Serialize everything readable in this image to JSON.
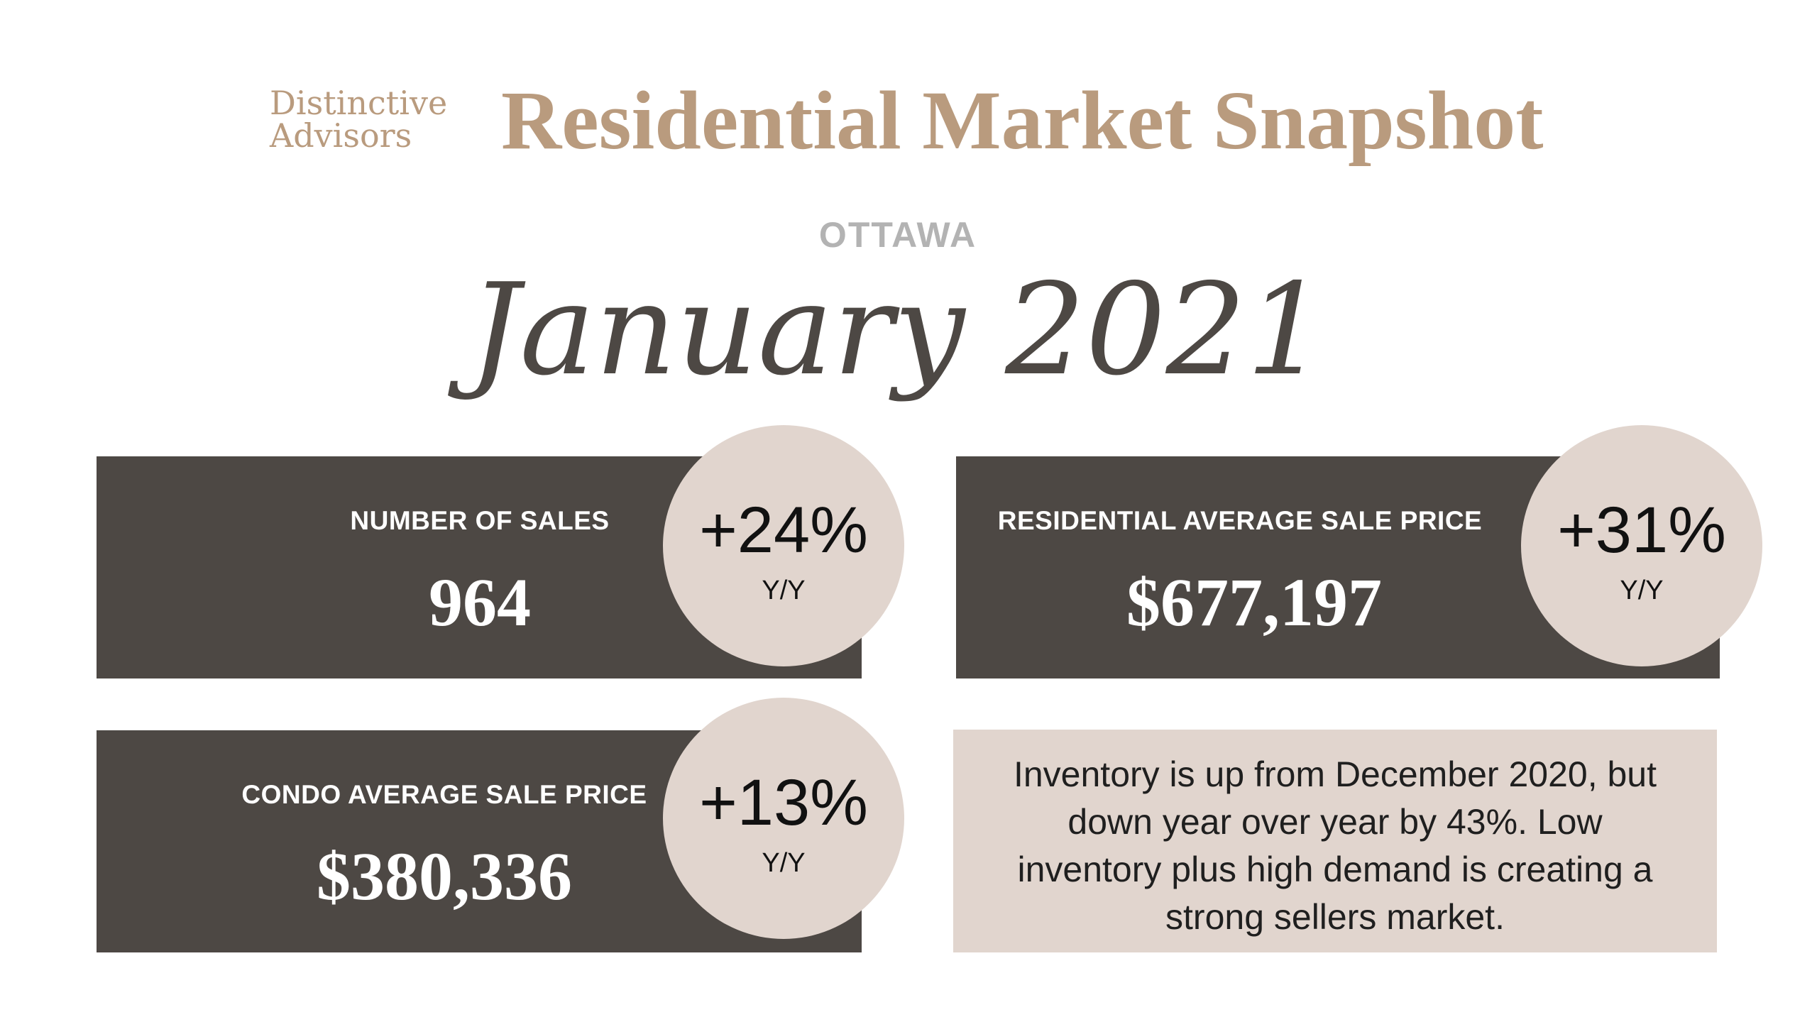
{
  "logo": {
    "line1": "Distinctive",
    "line2": "Advisors"
  },
  "title": "Residential Market Snapshot",
  "city": "OTTAWA",
  "period": "January 2021",
  "metrics": [
    {
      "label": "NUMBER OF SALES",
      "value": "964",
      "change": "+24%",
      "change_unit": "Y/Y"
    },
    {
      "label": "RESIDENTIAL AVERAGE SALE PRICE",
      "value": "$677,197",
      "change": "+31%",
      "change_unit": "Y/Y"
    },
    {
      "label": "CONDO AVERAGE SALE PRICE",
      "value": "$380,336",
      "change": "+13%",
      "change_unit": "Y/Y"
    }
  ],
  "note": {
    "lines": [
      "Inventory is up from December 2020, but",
      "down year over year by 43%. Low",
      "inventory plus high demand is creating a",
      "strong sellers market."
    ]
  },
  "colors": {
    "accent": "#b99b7e",
    "panel": "#4d4844",
    "circle": "#e1d5ce",
    "city": "#b3b3b3"
  }
}
